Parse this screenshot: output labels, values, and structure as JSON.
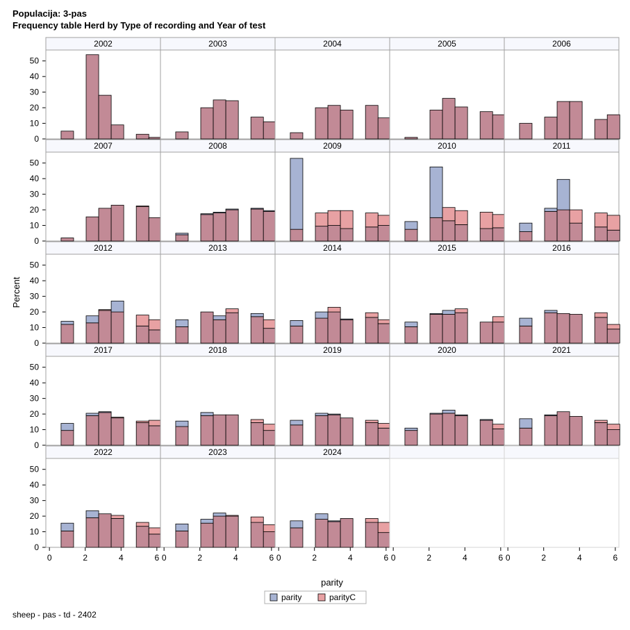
{
  "chart_data": {
    "type": "bar",
    "title": "Populacija: 3-pas",
    "subtitle": "Frequency table Herd by Type of recording and Year of test",
    "xlabel": "parity",
    "ylabel": "Percent",
    "xlim": [
      -0.2,
      6.2
    ],
    "ylim": [
      0,
      57
    ],
    "yticks": [
      0,
      10,
      20,
      30,
      40,
      50
    ],
    "xticks": [
      0,
      2,
      4,
      6
    ],
    "bin_centers": [
      1,
      2.4,
      3.1,
      3.8,
      5.2,
      5.9
    ],
    "bin_width": 0.7,
    "legend": [
      {
        "name": "parity",
        "color": "#a7b3d3"
      },
      {
        "name": "parityC",
        "color": "#e8a1a3"
      }
    ],
    "overlap_color": "#c28a96",
    "panels": [
      {
        "year": "2002",
        "parity": [
          5,
          54,
          28,
          9,
          3,
          1
        ],
        "parityC": [
          5,
          54,
          28,
          9,
          3,
          1
        ]
      },
      {
        "year": "2003",
        "parity": [
          4.5,
          20,
          25,
          24.5,
          14,
          11
        ],
        "parityC": [
          4.5,
          20,
          25,
          24.5,
          14,
          11
        ]
      },
      {
        "year": "2004",
        "parity": [
          4,
          20,
          21.5,
          18.5,
          21.5,
          13.5
        ],
        "parityC": [
          4,
          20,
          21.5,
          18.5,
          21.5,
          13.5
        ]
      },
      {
        "year": "2005",
        "parity": [
          1,
          18.5,
          26,
          20.5,
          17.5,
          15.5
        ],
        "parityC": [
          1,
          18.5,
          26,
          20.5,
          17.5,
          15.5
        ]
      },
      {
        "year": "2006",
        "parity": [
          10,
          14,
          24,
          24,
          12.5,
          15.5
        ],
        "parityC": [
          10,
          14,
          24,
          24,
          12.5,
          15.5
        ]
      },
      {
        "year": "2007",
        "parity": [
          2,
          15.5,
          21,
          23,
          22,
          15
        ],
        "parityC": [
          2,
          15.5,
          21,
          23,
          22.5,
          15
        ]
      },
      {
        "year": "2008",
        "parity": [
          5,
          17.5,
          18.5,
          20.5,
          21,
          19.5
        ],
        "parityC": [
          4,
          17,
          18,
          20,
          20.5,
          19
        ]
      },
      {
        "year": "2009",
        "parity": [
          53,
          9.5,
          10,
          8,
          9,
          10
        ],
        "parityC": [
          7.5,
          18,
          19.5,
          19.5,
          18,
          16.5
        ]
      },
      {
        "year": "2010",
        "parity": [
          12.5,
          47.5,
          13,
          10.5,
          8,
          8.5
        ],
        "parityC": [
          7.5,
          15,
          21.5,
          19.5,
          18.5,
          17
        ]
      },
      {
        "year": "2011",
        "parity": [
          11.5,
          21,
          39.5,
          11.5,
          9,
          7
        ],
        "parityC": [
          6,
          19,
          20,
          20,
          18,
          16.5
        ]
      },
      {
        "year": "2012",
        "parity": [
          14,
          17.5,
          21,
          27,
          11,
          8.5
        ],
        "parityC": [
          12,
          13,
          21.5,
          20,
          18,
          15
        ]
      },
      {
        "year": "2013",
        "parity": [
          15,
          20,
          17.5,
          19.5,
          19,
          9.5
        ],
        "parityC": [
          10.5,
          20,
          15,
          22,
          17,
          15
        ]
      },
      {
        "year": "2014",
        "parity": [
          14.5,
          20,
          20,
          15.5,
          16.5,
          12.5
        ],
        "parityC": [
          11,
          16,
          23,
          15,
          19.5,
          15
        ]
      },
      {
        "year": "2015",
        "parity": [
          13.5,
          19,
          21,
          19.5,
          13.5,
          13.5
        ],
        "parityC": [
          10.5,
          18.5,
          18.5,
          22,
          13.5,
          17
        ]
      },
      {
        "year": "2016",
        "parity": [
          16,
          21,
          19,
          18.5,
          16.5,
          9
        ],
        "parityC": [
          11,
          19.5,
          19,
          18.5,
          19.5,
          12
        ]
      },
      {
        "year": "2017",
        "parity": [
          14,
          20.5,
          21.5,
          17.5,
          14.5,
          12.5
        ],
        "parityC": [
          9.5,
          19,
          21,
          18,
          15.5,
          16
        ]
      },
      {
        "year": "2018",
        "parity": [
          15.5,
          21,
          19.5,
          19.5,
          14.5,
          9.5
        ],
        "parityC": [
          12,
          19,
          19.5,
          19.5,
          16.5,
          13.5
        ]
      },
      {
        "year": "2019",
        "parity": [
          16,
          20.5,
          20,
          17.5,
          14.5,
          11
        ],
        "parityC": [
          13,
          19,
          19.5,
          17.5,
          16,
          14
        ]
      },
      {
        "year": "2020",
        "parity": [
          11,
          20.5,
          22.5,
          19.5,
          16.5,
          10.5
        ],
        "parityC": [
          9.5,
          20,
          20.5,
          19,
          16,
          13.5
        ]
      },
      {
        "year": "2021",
        "parity": [
          17,
          19.5,
          21.5,
          18.5,
          14.5,
          10
        ],
        "parityC": [
          11,
          19,
          21.5,
          18.5,
          16,
          13.5
        ]
      },
      {
        "year": "2022",
        "parity": [
          15.5,
          23.5,
          21.5,
          18.5,
          13.5,
          8.5
        ],
        "parityC": [
          10.5,
          19,
          21.5,
          20.5,
          16,
          12.5
        ]
      },
      {
        "year": "2023",
        "parity": [
          15,
          18,
          22,
          20,
          16,
          10
        ],
        "parityC": [
          10.5,
          15.5,
          20,
          20.5,
          19.5,
          14.5
        ]
      },
      {
        "year": "2024",
        "parity": [
          17,
          21.5,
          17,
          18.5,
          16,
          9.5
        ],
        "parityC": [
          12.5,
          18,
          16.5,
          18.5,
          18.5,
          16
        ]
      }
    ]
  },
  "footnote": "sheep - pas - td - 2402"
}
